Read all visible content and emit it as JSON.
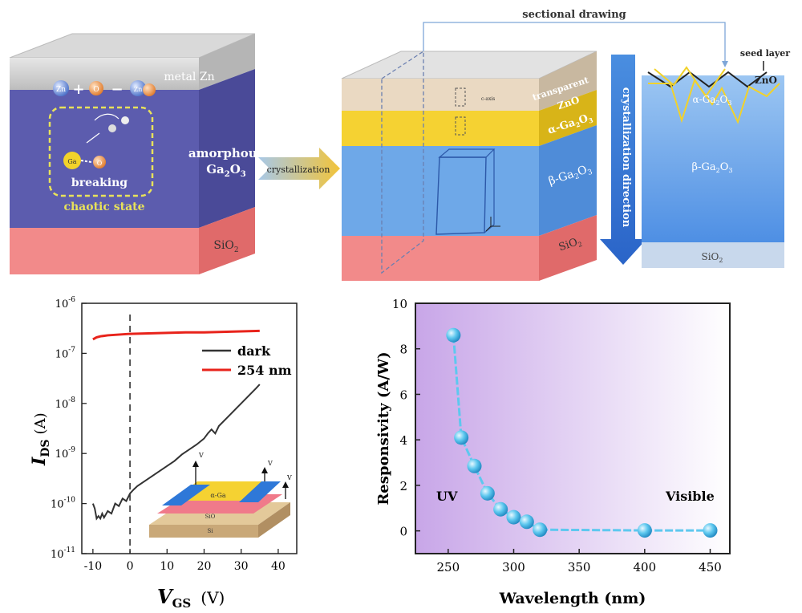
{
  "top_left": {
    "layer_top": "metal Zn",
    "layer_mid_line1": "amorphous",
    "layer_mid_line2": "Ga",
    "layer_mid_sub": "2",
    "layer_mid_tail": "O",
    "layer_mid_sub2": "3",
    "layer_bottom": "SiO",
    "layer_bottom_sub": "2",
    "reaction_zn": "Zn",
    "reaction_o": "O",
    "reaction_plus": "+",
    "reaction_minus": "−",
    "reaction_product": "Zn",
    "breaking_label": "breaking",
    "chaotic_label": "chaotic state",
    "ga_label": "Ga"
  },
  "arrow_label": "crystallization",
  "top_right": {
    "sectional_label": "sectional drawing",
    "seed_label": "seed layer",
    "zno_top": "ZnO",
    "transparent": "transparent",
    "layer_zno": "ZnO",
    "layer_alpha": "α-Ga",
    "layer_beta": "β-Ga",
    "layer_sio2": "SiO",
    "direction_label": "crystallization direction",
    "section_alpha": "α-Ga",
    "section_beta": "β-Ga",
    "section_sio2": "SiO",
    "sub2": "2",
    "sub3": "3",
    "c_axis": "c-axis"
  },
  "inset_device": {
    "channel": "α-Ga",
    "sio2": "SiO",
    "si": "Si",
    "v_labels": [
      "V",
      "V",
      "V"
    ]
  },
  "chart_data": [
    {
      "type": "line",
      "ylabel_main": "I",
      "ylabel_sub": "DS",
      "ylabel_unit": "(A)",
      "xlabel_main": "V",
      "xlabel_sub": "GS",
      "xlabel_unit": "(V)",
      "yscale": "log",
      "ylim": [
        1e-11,
        1e-06
      ],
      "xlim": [
        -13,
        45
      ],
      "xticks": [
        -10,
        0,
        10,
        20,
        30,
        40
      ],
      "yticks": [
        {
          "base": "10",
          "exp": "-11",
          "value": -11
        },
        {
          "base": "10",
          "exp": "-10",
          "value": -10
        },
        {
          "base": "10",
          "exp": "-9",
          "value": -9
        },
        {
          "base": "10",
          "exp": "-8",
          "value": -8
        },
        {
          "base": "10",
          "exp": "-7",
          "value": -7
        },
        {
          "base": "10",
          "exp": "-6",
          "value": -6
        }
      ],
      "legend": [
        "dark",
        "254 nm"
      ],
      "colors": {
        "dark": "#333333",
        "254 nm": "#e8231b"
      },
      "series": [
        {
          "name": "dark",
          "x": [
            -10,
            -9.5,
            -9,
            -8.5,
            -8,
            -7.5,
            -7,
            -6,
            -5,
            -4,
            -3,
            -2,
            -1,
            0,
            1,
            2,
            4,
            6,
            8,
            10,
            12,
            14,
            16,
            18,
            20,
            21,
            22,
            23,
            24,
            26,
            28,
            30,
            32,
            34,
            35
          ],
          "log10y": [
            -10.0,
            -10.1,
            -10.3,
            -10.25,
            -10.3,
            -10.2,
            -10.28,
            -10.15,
            -10.2,
            -10.0,
            -10.05,
            -9.9,
            -9.95,
            -9.8,
            -9.72,
            -9.65,
            -9.55,
            -9.45,
            -9.35,
            -9.25,
            -9.15,
            -9.02,
            -8.92,
            -8.82,
            -8.7,
            -8.6,
            -8.52,
            -8.6,
            -8.45,
            -8.3,
            -8.15,
            -8.0,
            -7.85,
            -7.7,
            -7.62
          ]
        },
        {
          "name": "254 nm",
          "x": [
            -10,
            -9,
            -8,
            -6,
            -4,
            -2,
            0,
            5,
            10,
            15,
            20,
            25,
            30,
            35
          ],
          "log10y": [
            -6.72,
            -6.68,
            -6.66,
            -6.64,
            -6.63,
            -6.62,
            -6.61,
            -6.6,
            -6.59,
            -6.58,
            -6.58,
            -6.57,
            -6.56,
            -6.55
          ]
        }
      ],
      "dashed_line_at_x": 0
    },
    {
      "type": "line",
      "title": "",
      "xlabel": "Wavelength (nm)",
      "ylabel": "Responsivity (A/W)",
      "xlim": [
        225,
        465
      ],
      "ylim": [
        -1,
        10
      ],
      "xticks": [
        250,
        300,
        350,
        400,
        450
      ],
      "yticks": [
        0,
        2,
        4,
        6,
        8,
        10
      ],
      "annotations": [
        "UV",
        "Visible"
      ],
      "x": [
        254,
        260,
        270,
        280,
        290,
        300,
        310,
        320,
        400,
        450
      ],
      "y": [
        8.6,
        4.1,
        2.85,
        1.65,
        0.95,
        0.6,
        0.4,
        0.05,
        0.02,
        0.02
      ],
      "color": "#5ec8ef"
    }
  ]
}
